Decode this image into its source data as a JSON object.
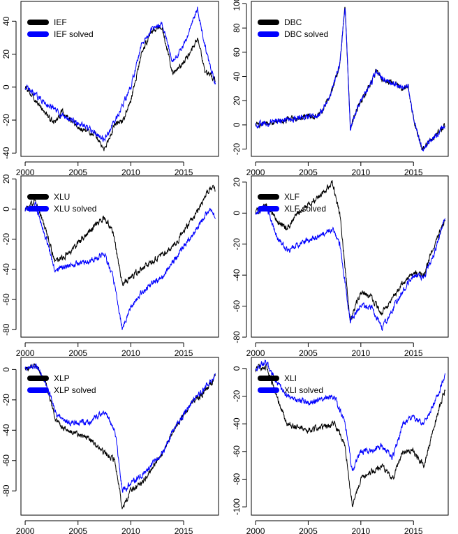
{
  "chart_data": [
    {
      "type": "line",
      "x_ticks": [
        2000,
        2005,
        2010,
        2015
      ],
      "xlim": [
        1999.6,
        2018.3
      ],
      "ylim": [
        -42,
        52
      ],
      "y_ticks": [
        -40,
        -20,
        0,
        20,
        40
      ],
      "legend_position": "top-left",
      "colors": [
        "#000000",
        "#0000ff"
      ],
      "series": [
        {
          "name": "IEF",
          "x": [
            2000,
            2002.7,
            2003.5,
            2005,
            2006.5,
            2007.5,
            2008.5,
            2009.3,
            2010,
            2011,
            2012,
            2013,
            2014,
            2015,
            2016.3,
            2017,
            2018
          ],
          "values": [
            0,
            -22,
            -15,
            -25,
            -28,
            -38,
            -22,
            -20,
            -8,
            20,
            35,
            35,
            8,
            15,
            30,
            10,
            5
          ]
        },
        {
          "name": "IEF solved",
          "x": [
            2000,
            2002,
            2003.5,
            2005,
            2006.5,
            2007.5,
            2008.5,
            2009.3,
            2010,
            2011,
            2012,
            2013,
            2014,
            2015,
            2016.3,
            2017,
            2018
          ],
          "values": [
            0,
            -10,
            -17,
            -22,
            -27,
            -32,
            -20,
            -10,
            0,
            25,
            35,
            38,
            15,
            25,
            48,
            25,
            2
          ]
        }
      ]
    },
    {
      "type": "line",
      "x_ticks": [
        2000,
        2005,
        2010,
        2015
      ],
      "xlim": [
        1999.6,
        2018.3
      ],
      "ylim": [
        -26,
        102
      ],
      "y_ticks": [
        -20,
        0,
        20,
        40,
        60,
        80,
        100
      ],
      "legend_position": "top-left",
      "colors": [
        "#000000",
        "#0000ff"
      ],
      "series": [
        {
          "name": "DBC",
          "x": [
            2000,
            2003,
            2006,
            2007,
            2008,
            2008.5,
            2009,
            2010,
            2011,
            2011.5,
            2012,
            2013,
            2014,
            2014.5,
            2015,
            2015.8,
            2017,
            2018
          ],
          "values": [
            0,
            4,
            8,
            22,
            50,
            98,
            -2,
            20,
            35,
            45,
            38,
            35,
            30,
            32,
            5,
            -20,
            -10,
            0
          ]
        },
        {
          "name": "DBC solved",
          "x": [
            2000,
            2003,
            2006,
            2007,
            2008,
            2008.5,
            2009,
            2010,
            2011,
            2011.5,
            2012,
            2013,
            2014,
            2014.5,
            2015,
            2015.8,
            2017,
            2018
          ],
          "values": [
            0,
            4,
            8,
            22,
            50,
            98,
            -2,
            20,
            35,
            45,
            38,
            35,
            30,
            32,
            5,
            -20,
            -10,
            0
          ]
        }
      ]
    },
    {
      "type": "line",
      "x_ticks": [
        2000,
        2005,
        2010,
        2015
      ],
      "xlim": [
        1999.6,
        2018.3
      ],
      "ylim": [
        -85,
        22
      ],
      "y_ticks": [
        -80,
        -60,
        -40,
        -20,
        0,
        20
      ],
      "legend_position": "top-left",
      "colors": [
        "#000000",
        "#0000ff"
      ],
      "series": [
        {
          "name": "XLU",
          "x": [
            2000,
            2001,
            2002,
            2002.8,
            2004,
            2006,
            2007.5,
            2008.3,
            2009.2,
            2010,
            2011,
            2013,
            2014,
            2015.5,
            2016.5,
            2017.5,
            2018
          ],
          "values": [
            0,
            5,
            -15,
            -35,
            -30,
            -15,
            -5,
            -15,
            -50,
            -45,
            -40,
            -30,
            -25,
            -10,
            0,
            15,
            12
          ]
        },
        {
          "name": "XLU solved",
          "x": [
            2000,
            2001,
            2002,
            2002.8,
            2004,
            2006,
            2007.5,
            2008.3,
            2009.2,
            2010,
            2011,
            2013,
            2014,
            2015.5,
            2016.5,
            2017.5,
            2018
          ],
          "values": [
            0,
            3,
            -20,
            -40,
            -38,
            -35,
            -30,
            -45,
            -80,
            -65,
            -55,
            -45,
            -35,
            -20,
            -10,
            0,
            -5
          ]
        }
      ]
    },
    {
      "type": "line",
      "x_ticks": [
        2000,
        2005,
        2010,
        2015
      ],
      "xlim": [
        1999.6,
        2018.3
      ],
      "ylim": [
        -80,
        24
      ],
      "y_ticks": [
        -80,
        -60,
        -40,
        -20,
        0,
        20
      ],
      "legend_position": "top-left",
      "colors": [
        "#000000",
        "#0000ff"
      ],
      "series": [
        {
          "name": "XLF",
          "x": [
            2000,
            2001,
            2002,
            2003,
            2004,
            2006,
            2007.3,
            2008,
            2009,
            2010,
            2011,
            2012,
            2013,
            2014,
            2015,
            2016,
            2017,
            2018
          ],
          "values": [
            0,
            5,
            -5,
            -10,
            0,
            10,
            20,
            0,
            -70,
            -50,
            -55,
            -65,
            -55,
            -45,
            -38,
            -40,
            -20,
            -5
          ]
        },
        {
          "name": "XLF solved",
          "x": [
            2000,
            2001,
            2002,
            2003,
            2004,
            2006,
            2007.3,
            2008,
            2009,
            2010,
            2011,
            2012,
            2013,
            2014,
            2015,
            2016,
            2017,
            2018
          ],
          "values": [
            0,
            5,
            -15,
            -25,
            -20,
            -15,
            -10,
            -20,
            -70,
            -60,
            -60,
            -75,
            -62,
            -50,
            -40,
            -42,
            -25,
            -3
          ]
        }
      ]
    },
    {
      "type": "line",
      "x_ticks": [
        2000,
        2005,
        2010,
        2015
      ],
      "xlim": [
        1999.6,
        2018.3
      ],
      "ylim": [
        -96,
        8
      ],
      "y_ticks": [
        -80,
        -60,
        -40,
        -20,
        0
      ],
      "legend_position": "top-left",
      "colors": [
        "#000000",
        "#0000ff"
      ],
      "series": [
        {
          "name": "XLP",
          "x": [
            2000,
            2001,
            2002,
            2003,
            2004,
            2006,
            2007.5,
            2008.5,
            2009.2,
            2010,
            2011,
            2013,
            2014,
            2015,
            2016,
            2017,
            2018
          ],
          "values": [
            0,
            3,
            -10,
            -35,
            -40,
            -45,
            -55,
            -60,
            -92,
            -80,
            -75,
            -55,
            -40,
            -30,
            -20,
            -15,
            -5
          ]
        },
        {
          "name": "XLP solved",
          "x": [
            2000,
            2001,
            2002,
            2003,
            2004,
            2006,
            2007.5,
            2008.5,
            2009.2,
            2010,
            2011,
            2013,
            2014,
            2015,
            2016,
            2017,
            2018
          ],
          "values": [
            0,
            3,
            -10,
            -30,
            -35,
            -35,
            -28,
            -40,
            -80,
            -75,
            -70,
            -55,
            -40,
            -30,
            -20,
            -12,
            -3
          ]
        }
      ]
    },
    {
      "type": "line",
      "x_ticks": [
        2000,
        2005,
        2010,
        2015
      ],
      "xlim": [
        1999.6,
        2018.3
      ],
      "ylim": [
        -106,
        8
      ],
      "y_ticks": [
        -100,
        -80,
        -60,
        -40,
        -20,
        0
      ],
      "legend_position": "top-left",
      "colors": [
        "#000000",
        "#0000ff"
      ],
      "series": [
        {
          "name": "XLI",
          "x": [
            2000,
            2001,
            2002,
            2003,
            2005,
            2007.5,
            2008.5,
            2009.2,
            2010,
            2011,
            2012,
            2013,
            2014,
            2015,
            2016,
            2017,
            2018
          ],
          "values": [
            0,
            2,
            -20,
            -40,
            -45,
            -40,
            -55,
            -100,
            -80,
            -75,
            -70,
            -80,
            -60,
            -60,
            -70,
            -40,
            -15
          ]
        },
        {
          "name": "XLI solved",
          "x": [
            2000,
            2001,
            2002,
            2003,
            2005,
            2007.5,
            2008.5,
            2009.2,
            2010,
            2011,
            2012,
            2013,
            2014,
            2015,
            2016,
            2017,
            2018
          ],
          "values": [
            0,
            5,
            -10,
            -20,
            -25,
            -20,
            -40,
            -75,
            -60,
            -60,
            -55,
            -65,
            -40,
            -35,
            -40,
            -25,
            -5
          ]
        }
      ]
    }
  ]
}
